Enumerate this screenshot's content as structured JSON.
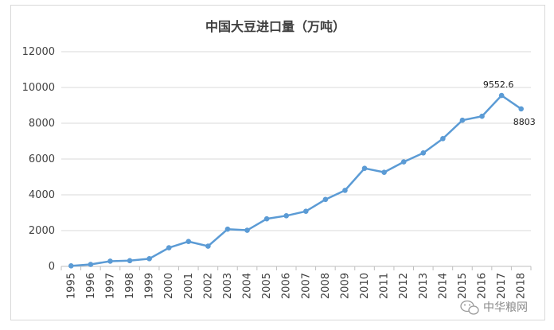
{
  "chart_data": {
    "type": "line",
    "title": "中国大豆进口量（万吨）",
    "xlabel": "",
    "ylabel": "",
    "categories": [
      "1995",
      "1996",
      "1997",
      "1998",
      "1999",
      "2000",
      "2001",
      "2002",
      "2003",
      "2004",
      "2005",
      "2006",
      "2007",
      "2008",
      "2009",
      "2010",
      "2011",
      "2012",
      "2013",
      "2014",
      "2015",
      "2016",
      "2017",
      "2018"
    ],
    "series": [
      {
        "values": [
          30,
          110,
          290,
          320,
          430,
          1040,
          1390,
          1130,
          2080,
          2020,
          2660,
          2830,
          3080,
          3740,
          4250,
          5480,
          5260,
          5840,
          6340,
          7140,
          8170,
          8390,
          9552.6,
          8803
        ],
        "color": "#5b9bd5"
      }
    ],
    "ylim": [
      0,
      12000
    ],
    "yticks": [
      0,
      2000,
      4000,
      6000,
      8000,
      10000,
      12000
    ],
    "grid": true,
    "legend": "none",
    "data_labels": [
      {
        "category": "2017",
        "text": "9552.6"
      },
      {
        "category": "2018",
        "text": "8803"
      }
    ]
  },
  "watermark": {
    "text": "中华粮网",
    "icon": "wechat-icon"
  }
}
